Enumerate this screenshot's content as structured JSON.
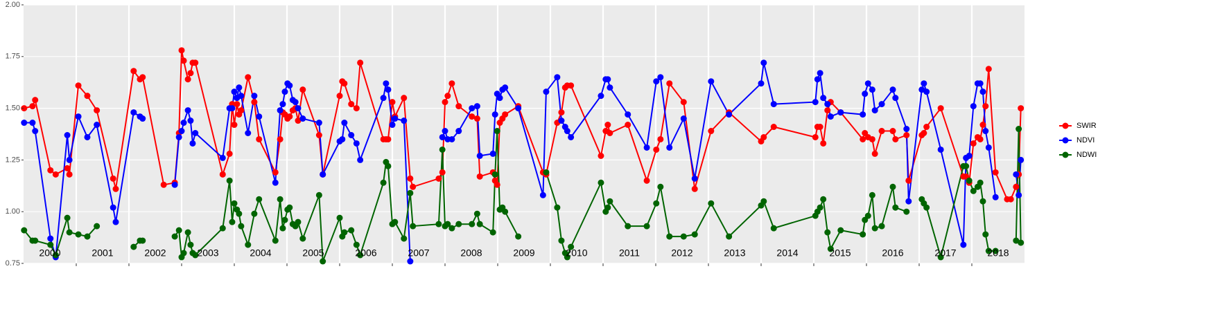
{
  "chart_data": {
    "type": "line",
    "x": [
      2000.01,
      2000.17,
      2000.22,
      2000.51,
      2000.61,
      2000.83,
      2000.87,
      2001.04,
      2001.21,
      2001.39,
      2001.7,
      2001.75,
      2002.09,
      2002.21,
      2002.26,
      2002.66,
      2002.87,
      2002.95,
      2003.0,
      2003.04,
      2003.12,
      2003.17,
      2003.21,
      2003.26,
      2003.78,
      2003.91,
      2003.96,
      2004.0,
      2004.05,
      2004.09,
      2004.13,
      2004.26,
      2004.38,
      2004.47,
      2004.78,
      2004.87,
      2004.92,
      2004.96,
      2005.01,
      2005.05,
      2005.11,
      2005.16,
      2005.21,
      2005.3,
      2005.61,
      2005.68,
      2006.0,
      2006.05,
      2006.09,
      2006.22,
      2006.32,
      2006.39,
      2006.83,
      2006.88,
      2006.92,
      2007.0,
      2007.05,
      2007.22,
      2007.34,
      2007.39,
      2007.88,
      2007.95,
      2008.0,
      2008.05,
      2008.13,
      2008.26,
      2008.51,
      2008.61,
      2008.66,
      2008.91,
      2008.95,
      2008.99,
      2009.04,
      2009.09,
      2009.14,
      2009.39,
      2009.86,
      2009.92,
      2010.13,
      2010.21,
      2010.28,
      2010.32,
      2010.39,
      2010.96,
      2011.05,
      2011.09,
      2011.13,
      2011.47,
      2011.83,
      2012.01,
      2012.09,
      2012.26,
      2012.53,
      2012.74,
      2013.05,
      2013.39,
      2014.0,
      2014.05,
      2014.24,
      2015.03,
      2015.07,
      2015.12,
      2015.18,
      2015.26,
      2015.32,
      2015.51,
      2015.93,
      2015.97,
      2016.03,
      2016.11,
      2016.16,
      2016.29,
      2016.5,
      2016.55,
      2016.76,
      2016.8,
      2017.05,
      2017.09,
      2017.14,
      2017.41,
      2017.84,
      2017.89,
      2017.95,
      2018.03,
      2018.11,
      2018.16,
      2018.21,
      2018.26,
      2018.32,
      2018.45,
      2018.67,
      2018.74,
      2018.84,
      2018.89,
      2018.93
    ],
    "series": [
      {
        "name": "SWIR",
        "color": "#ff0000",
        "values": [
          1.5,
          1.51,
          1.54,
          1.2,
          1.18,
          1.21,
          1.18,
          1.61,
          1.56,
          1.49,
          1.16,
          1.11,
          1.68,
          1.64,
          1.65,
          1.13,
          1.14,
          1.38,
          1.78,
          1.73,
          1.64,
          1.67,
          1.72,
          1.72,
          1.18,
          1.28,
          1.52,
          1.42,
          1.52,
          1.47,
          1.49,
          1.65,
          1.53,
          1.35,
          1.19,
          1.35,
          1.48,
          1.47,
          1.45,
          1.46,
          1.49,
          1.5,
          1.44,
          1.59,
          1.37,
          1.18,
          1.56,
          1.63,
          1.62,
          1.52,
          1.5,
          1.72,
          1.35,
          1.35,
          1.35,
          1.53,
          1.46,
          1.55,
          1.16,
          1.12,
          1.16,
          1.19,
          1.53,
          1.56,
          1.62,
          1.51,
          1.46,
          1.45,
          1.17,
          1.19,
          1.15,
          1.13,
          1.43,
          1.45,
          1.47,
          1.51,
          1.19,
          1.18,
          1.43,
          1.48,
          1.6,
          1.61,
          1.61,
          1.27,
          1.39,
          1.42,
          1.38,
          1.42,
          1.15,
          1.3,
          1.35,
          1.62,
          1.53,
          1.11,
          1.39,
          1.48,
          1.34,
          1.36,
          1.41,
          1.36,
          1.41,
          1.41,
          1.33,
          1.49,
          1.53,
          1.48,
          1.35,
          1.38,
          1.36,
          1.35,
          1.28,
          1.39,
          1.39,
          1.35,
          1.37,
          1.15,
          1.37,
          1.38,
          1.41,
          1.5,
          1.17,
          1.17,
          1.14,
          1.33,
          1.36,
          1.35,
          1.42,
          1.51,
          1.69,
          1.19,
          1.06,
          1.06,
          1.12,
          1.18,
          1.5
        ]
      },
      {
        "name": "NDVI",
        "color": "#0000ff",
        "values": [
          1.43,
          1.43,
          1.39,
          0.87,
          0.78,
          1.37,
          1.25,
          1.46,
          1.36,
          1.42,
          1.02,
          0.95,
          1.48,
          1.46,
          1.45,
          null,
          1.13,
          1.36,
          1.39,
          1.43,
          1.49,
          1.44,
          1.33,
          1.38,
          1.26,
          1.5,
          1.5,
          1.58,
          1.55,
          1.6,
          1.56,
          1.38,
          1.56,
          1.46,
          1.14,
          1.49,
          1.52,
          1.58,
          1.62,
          1.61,
          1.54,
          1.53,
          1.5,
          1.45,
          1.43,
          1.18,
          1.34,
          1.35,
          1.43,
          1.37,
          1.33,
          1.25,
          1.55,
          1.62,
          1.59,
          1.42,
          1.45,
          1.44,
          0.76,
          null,
          null,
          1.36,
          1.39,
          1.35,
          1.35,
          1.39,
          1.5,
          1.51,
          1.27,
          1.28,
          1.47,
          1.57,
          1.55,
          1.59,
          1.6,
          1.5,
          1.08,
          1.58,
          1.65,
          1.44,
          1.41,
          1.39,
          1.36,
          1.56,
          1.64,
          1.64,
          1.6,
          1.47,
          1.31,
          1.63,
          1.65,
          1.31,
          1.45,
          1.16,
          1.63,
          1.47,
          1.62,
          1.72,
          1.52,
          1.53,
          1.64,
          1.67,
          1.55,
          1.52,
          1.46,
          1.48,
          1.47,
          1.57,
          1.62,
          1.59,
          1.49,
          1.52,
          1.59,
          1.55,
          1.4,
          1.05,
          1.59,
          1.62,
          1.58,
          1.3,
          0.84,
          1.26,
          1.27,
          1.51,
          1.62,
          1.62,
          1.58,
          1.39,
          1.31,
          1.07,
          null,
          null,
          1.18,
          1.08,
          1.25
        ]
      },
      {
        "name": "NDWI",
        "color": "#006400",
        "values": [
          0.91,
          0.86,
          0.86,
          0.84,
          0.79,
          0.97,
          0.9,
          0.89,
          0.88,
          0.93,
          null,
          null,
          0.83,
          0.86,
          0.86,
          null,
          0.88,
          0.91,
          0.78,
          0.8,
          0.9,
          0.84,
          0.8,
          0.79,
          0.92,
          1.15,
          0.95,
          1.04,
          1.01,
          0.99,
          0.93,
          0.84,
          0.99,
          1.06,
          0.86,
          1.06,
          0.92,
          0.96,
          1.01,
          1.02,
          0.94,
          0.93,
          0.95,
          0.87,
          1.08,
          0.76,
          0.97,
          0.88,
          0.9,
          0.91,
          0.84,
          0.79,
          1.14,
          1.24,
          1.22,
          0.94,
          0.95,
          0.87,
          1.09,
          0.93,
          0.94,
          1.3,
          0.93,
          0.94,
          0.92,
          0.94,
          0.94,
          0.99,
          0.94,
          0.9,
          1.18,
          1.39,
          1.01,
          1.02,
          1.0,
          0.88,
          null,
          1.19,
          1.02,
          0.86,
          0.8,
          0.78,
          0.83,
          1.14,
          1.0,
          1.02,
          1.05,
          0.93,
          0.93,
          1.04,
          1.12,
          0.88,
          0.88,
          0.89,
          1.04,
          0.88,
          1.03,
          1.05,
          0.92,
          0.98,
          1.0,
          1.02,
          1.06,
          0.9,
          0.82,
          0.91,
          0.89,
          0.96,
          0.98,
          1.08,
          0.92,
          0.93,
          1.12,
          1.02,
          1.0,
          null,
          1.06,
          1.04,
          1.02,
          0.78,
          1.22,
          1.22,
          1.15,
          1.1,
          1.12,
          1.14,
          1.05,
          0.89,
          0.81,
          0.81,
          null,
          null,
          0.86,
          1.4,
          0.85
        ]
      }
    ],
    "xlim": [
      2000,
      2019
    ],
    "xticks": [
      {
        "value": 2000.5,
        "label": "2000"
      },
      {
        "value": 2001.5,
        "label": "2001"
      },
      {
        "value": 2002.5,
        "label": "2002"
      },
      {
        "value": 2003.5,
        "label": "2003"
      },
      {
        "value": 2004.5,
        "label": "2004"
      },
      {
        "value": 2005.5,
        "label": "2005"
      },
      {
        "value": 2006.5,
        "label": "2006"
      },
      {
        "value": 2007.5,
        "label": "2007"
      },
      {
        "value": 2008.5,
        "label": "2008"
      },
      {
        "value": 2009.5,
        "label": "2009"
      },
      {
        "value": 2010.5,
        "label": "2010"
      },
      {
        "value": 2011.5,
        "label": "2011"
      },
      {
        "value": 2012.5,
        "label": "2012"
      },
      {
        "value": 2013.5,
        "label": "2013"
      },
      {
        "value": 2014.5,
        "label": "2014"
      },
      {
        "value": 2015.5,
        "label": "2015"
      },
      {
        "value": 2016.5,
        "label": "2016"
      },
      {
        "value": 2017.5,
        "label": "2017"
      },
      {
        "value": 2018.5,
        "label": "2018"
      }
    ],
    "xgrid": [
      2001,
      2002,
      2003,
      2004,
      2005,
      2006,
      2007,
      2008,
      2009,
      2010,
      2011,
      2012,
      2013,
      2014,
      2015,
      2016,
      2017,
      2018
    ],
    "ylim": [
      0.75,
      2.0
    ],
    "yticks": [
      {
        "value": 0.75,
        "label": "0.75"
      },
      {
        "value": 1,
        "label": "1.00"
      },
      {
        "value": 1.25,
        "label": "1.25"
      },
      {
        "value": 1.5,
        "label": "1.50"
      },
      {
        "value": 1.75,
        "label": "1.75"
      },
      {
        "value": 2,
        "label": "2.00"
      }
    ],
    "grid": true,
    "legend": "right"
  }
}
